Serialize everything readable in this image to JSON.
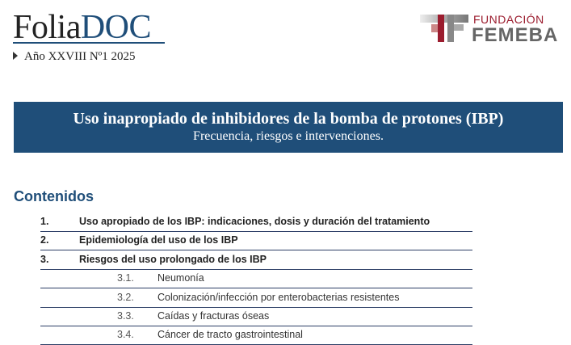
{
  "header": {
    "logo_part1": "Folia",
    "logo_part2": "DOC",
    "issue": "Año XXVIII Nº1 2025",
    "foundation_line1": "FUNDACIÓN",
    "foundation_line2": "FEMEBA"
  },
  "banner": {
    "title": "Uso inapropiado de inhibidores de la bomba de protones (IBP)",
    "subtitle": "Frecuencia, riesgos e intervenciones."
  },
  "contents": {
    "heading": "Contenidos",
    "items": [
      {
        "num": "1.",
        "label": "Uso apropiado de los IBP: indicaciones, dosis y duración del tratamiento"
      },
      {
        "num": "2.",
        "label": "Epidemiología del uso de los IBP"
      },
      {
        "num": "3.",
        "label": "Riesgos del uso prolongado de los IBP"
      },
      {
        "num": "3.1.",
        "label": "Neumonía"
      },
      {
        "num": "3.2.",
        "label": "Colonización/infección por enterobacterias resistentes"
      },
      {
        "num": "3.3.",
        "label": "Caídas y fracturas óseas"
      },
      {
        "num": "3.4.",
        "label": "Cáncer de tracto gastrointestinal"
      }
    ]
  },
  "colors": {
    "brand_blue": "#1f4e79",
    "femeba_red": "#9b1c2e"
  }
}
